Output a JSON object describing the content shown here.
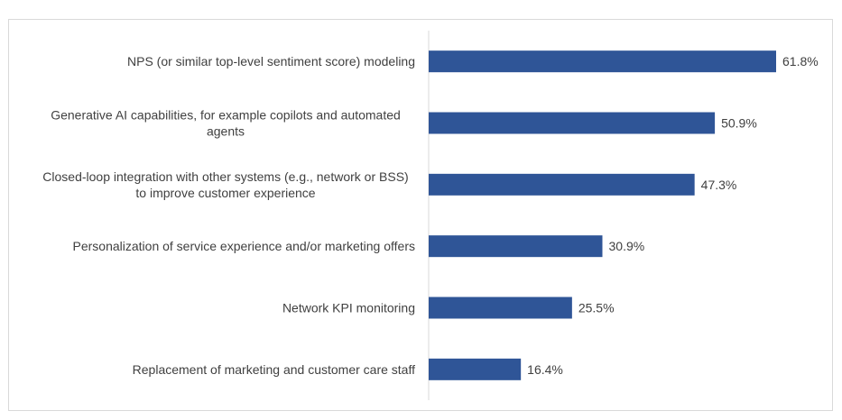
{
  "chart_data": {
    "type": "bar",
    "orientation": "horizontal",
    "categories": [
      "NPS (or similar top-level sentiment score) modeling",
      "Generative AI capabilities, for example copilots and automated agents",
      "Closed-loop integration with other systems (e.g., network or BSS) to improve customer experience",
      "Personalization of service experience and/or marketing offers",
      "Network KPI monitoring",
      "Replacement of marketing and customer care staff"
    ],
    "category_lines": [
      [
        "NPS (or similar top-level sentiment score) modeling"
      ],
      [
        "Generative AI capabilities, for example copilots and automated",
        "agents"
      ],
      [
        "Closed-loop integration with other systems (e.g., network or BSS)",
        "to improve customer experience"
      ],
      [
        "Personalization of service experience and/or marketing offers"
      ],
      [
        "Network KPI monitoring"
      ],
      [
        "Replacement of marketing and customer care staff"
      ]
    ],
    "values": [
      61.8,
      50.9,
      47.3,
      30.9,
      25.5,
      16.4
    ],
    "data_labels": [
      "61.8%",
      "50.9%",
      "47.3%",
      "30.9%",
      "25.5%",
      "16.4%"
    ],
    "unit": "%",
    "xlim": [
      0,
      61.8
    ],
    "bar_color": "#2f5597",
    "axis_color": "#d9d9d9",
    "title": "",
    "xlabel": "",
    "ylabel": "",
    "grid": false,
    "legend": "none"
  }
}
